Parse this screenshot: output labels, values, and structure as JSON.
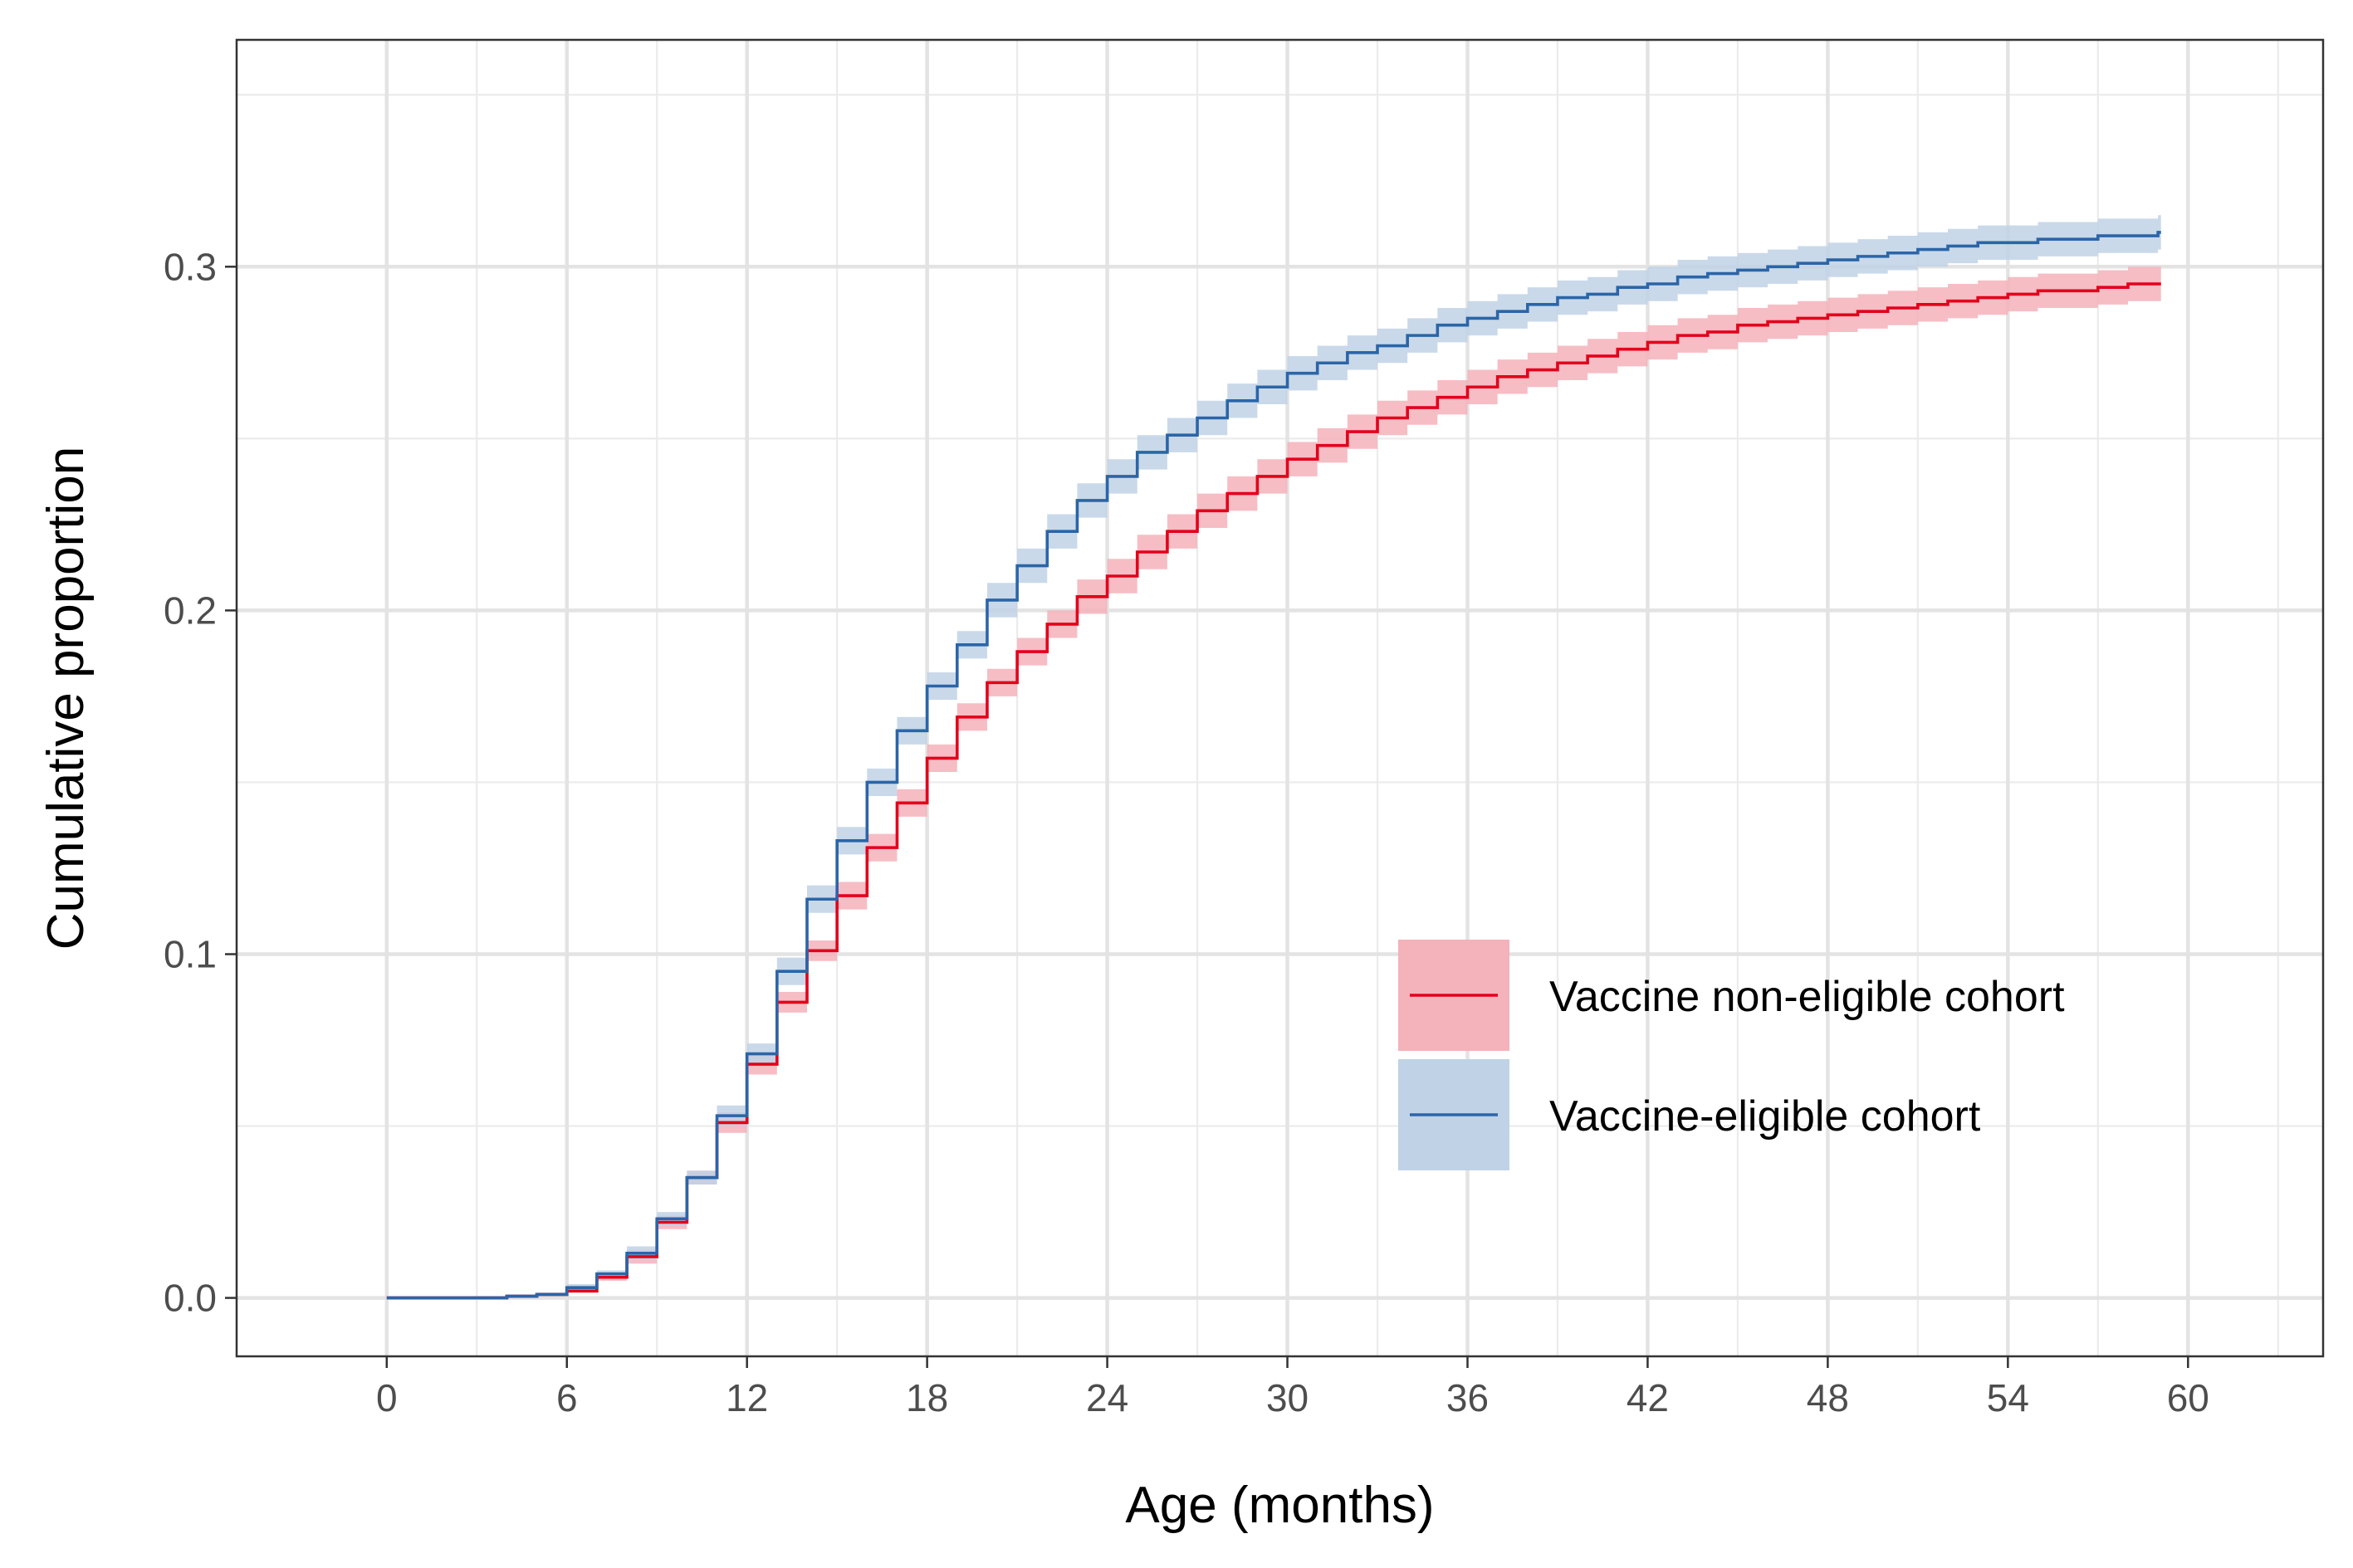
{
  "chart_data": {
    "type": "line",
    "subtype": "step",
    "title": "",
    "xlabel": "Age (months)",
    "ylabel": "Cumulative proportion",
    "xlim": [
      -5,
      64.5
    ],
    "ylim": [
      -0.017,
      0.366
    ],
    "xticks": [
      0,
      6,
      12,
      18,
      24,
      30,
      36,
      42,
      48,
      54,
      60
    ],
    "xtick_labels": [
      "0",
      "6",
      "12",
      "18",
      "24",
      "30",
      "36",
      "42",
      "48",
      "54",
      "60"
    ],
    "yticks": [
      0.0,
      0.1,
      0.2,
      0.3
    ],
    "ytick_labels": [
      "0.0",
      "0.1",
      "0.2",
      "0.3"
    ],
    "grid": true,
    "legend_position": "bottom-right",
    "x": [
      0,
      1,
      2,
      3,
      4,
      5,
      6,
      7,
      8,
      9,
      10,
      11,
      12,
      13,
      14,
      15,
      16,
      17,
      18,
      19,
      20,
      21,
      22,
      23,
      24,
      25,
      26,
      27,
      28,
      29,
      30,
      31,
      32,
      33,
      34,
      35,
      36,
      37,
      38,
      39,
      40,
      41,
      42,
      43,
      44,
      45,
      46,
      47,
      48,
      49,
      50,
      51,
      52,
      53,
      54,
      55,
      56,
      57,
      58,
      59
    ],
    "series": [
      {
        "name": "Vaccine non-eligible cohort",
        "color": "#e3001b",
        "ribbon_color": "#f4b2ba",
        "values": [
          0.0,
          0.0,
          0.0,
          0.0,
          0.0005,
          0.001,
          0.002,
          0.006,
          0.012,
          0.022,
          0.035,
          0.051,
          0.068,
          0.086,
          0.101,
          0.117,
          0.131,
          0.144,
          0.157,
          0.169,
          0.179,
          0.188,
          0.196,
          0.204,
          0.21,
          0.217,
          0.223,
          0.229,
          0.234,
          0.239,
          0.244,
          0.248,
          0.252,
          0.256,
          0.259,
          0.262,
          0.265,
          0.268,
          0.27,
          0.272,
          0.274,
          0.276,
          0.278,
          0.28,
          0.281,
          0.283,
          0.284,
          0.285,
          0.286,
          0.287,
          0.288,
          0.289,
          0.29,
          0.291,
          0.292,
          0.293,
          0.293,
          0.294,
          0.295,
          0.295
        ],
        "lower": [
          0.0,
          0.0,
          0.0,
          0.0,
          0.0,
          0.0005,
          0.0015,
          0.005,
          0.01,
          0.02,
          0.033,
          0.048,
          0.065,
          0.083,
          0.098,
          0.113,
          0.127,
          0.14,
          0.153,
          0.165,
          0.175,
          0.184,
          0.192,
          0.199,
          0.205,
          0.212,
          0.218,
          0.224,
          0.229,
          0.234,
          0.239,
          0.243,
          0.247,
          0.251,
          0.254,
          0.257,
          0.26,
          0.263,
          0.265,
          0.267,
          0.269,
          0.271,
          0.273,
          0.275,
          0.276,
          0.278,
          0.279,
          0.28,
          0.281,
          0.282,
          0.283,
          0.284,
          0.285,
          0.286,
          0.287,
          0.288,
          0.288,
          0.289,
          0.29,
          0.29
        ],
        "upper": [
          0.0,
          0.0,
          0.0,
          0.0005,
          0.001,
          0.0015,
          0.003,
          0.007,
          0.014,
          0.024,
          0.037,
          0.054,
          0.071,
          0.089,
          0.104,
          0.121,
          0.135,
          0.148,
          0.161,
          0.173,
          0.183,
          0.192,
          0.2,
          0.209,
          0.215,
          0.222,
          0.228,
          0.234,
          0.239,
          0.244,
          0.249,
          0.253,
          0.257,
          0.261,
          0.264,
          0.267,
          0.27,
          0.273,
          0.275,
          0.277,
          0.279,
          0.281,
          0.283,
          0.285,
          0.286,
          0.288,
          0.289,
          0.29,
          0.291,
          0.292,
          0.293,
          0.294,
          0.295,
          0.296,
          0.297,
          0.298,
          0.298,
          0.299,
          0.3,
          0.3
        ]
      },
      {
        "name": "Vaccine-eligible cohort",
        "color": "#2b65a8",
        "ribbon_color": "#c0d2e6",
        "values": [
          0.0,
          0.0,
          0.0,
          0.0,
          0.0005,
          0.001,
          0.003,
          0.007,
          0.013,
          0.023,
          0.035,
          0.053,
          0.071,
          0.095,
          0.116,
          0.133,
          0.15,
          0.165,
          0.178,
          0.19,
          0.203,
          0.213,
          0.223,
          0.232,
          0.239,
          0.246,
          0.251,
          0.256,
          0.261,
          0.265,
          0.269,
          0.272,
          0.275,
          0.277,
          0.28,
          0.283,
          0.285,
          0.287,
          0.289,
          0.291,
          0.292,
          0.294,
          0.295,
          0.297,
          0.298,
          0.299,
          0.3,
          0.301,
          0.302,
          0.303,
          0.304,
          0.305,
          0.306,
          0.307,
          0.307,
          0.308,
          0.308,
          0.309,
          0.309,
          0.31
        ],
        "lower": [
          0.0,
          0.0,
          0.0,
          0.0,
          0.0,
          0.0005,
          0.002,
          0.006,
          0.011,
          0.021,
          0.033,
          0.05,
          0.068,
          0.091,
          0.112,
          0.129,
          0.146,
          0.161,
          0.174,
          0.186,
          0.198,
          0.208,
          0.218,
          0.227,
          0.234,
          0.241,
          0.246,
          0.251,
          0.256,
          0.26,
          0.264,
          0.267,
          0.27,
          0.272,
          0.275,
          0.278,
          0.28,
          0.282,
          0.284,
          0.286,
          0.287,
          0.289,
          0.29,
          0.292,
          0.293,
          0.294,
          0.295,
          0.296,
          0.297,
          0.298,
          0.299,
          0.3,
          0.301,
          0.302,
          0.302,
          0.303,
          0.303,
          0.304,
          0.304,
          0.305
        ],
        "upper": [
          0.0,
          0.0,
          0.0,
          0.0005,
          0.001,
          0.0015,
          0.004,
          0.008,
          0.015,
          0.025,
          0.037,
          0.056,
          0.074,
          0.099,
          0.12,
          0.137,
          0.154,
          0.169,
          0.182,
          0.194,
          0.208,
          0.218,
          0.228,
          0.237,
          0.244,
          0.251,
          0.256,
          0.261,
          0.266,
          0.27,
          0.274,
          0.277,
          0.28,
          0.282,
          0.285,
          0.288,
          0.29,
          0.292,
          0.294,
          0.296,
          0.297,
          0.299,
          0.3,
          0.302,
          0.303,
          0.304,
          0.305,
          0.306,
          0.307,
          0.308,
          0.309,
          0.31,
          0.311,
          0.312,
          0.312,
          0.313,
          0.313,
          0.314,
          0.314,
          0.315
        ]
      }
    ]
  }
}
